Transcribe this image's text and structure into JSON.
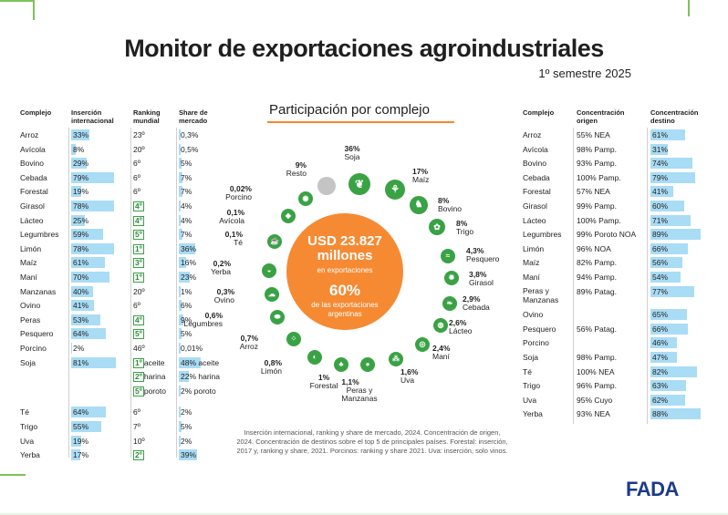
{
  "title": "Monitor de exportaciones agroindustriales",
  "subtitle": "1º semestre 2025",
  "colors": {
    "accent": "#f58a33",
    "green": "#3aa245",
    "bar": "#a9dcf5",
    "brand": "#1d3a8a"
  },
  "left_table": {
    "headers": {
      "complejo": "Complejo",
      "insercion": "Inserción internacional",
      "ranking": "Ranking mundial",
      "share": "Share de mercado"
    },
    "rows": [
      {
        "complejo": "Arroz",
        "insercion": "33%",
        "ins_pct": 33,
        "ranking": "23º",
        "rank_top": false,
        "share": "0,3%",
        "share_pct": 0.3
      },
      {
        "complejo": "Avícola",
        "insercion": "8%",
        "ins_pct": 8,
        "ranking": "20º",
        "rank_top": false,
        "share": "0,5%",
        "share_pct": 0.5
      },
      {
        "complejo": "Bovino",
        "insercion": "29%",
        "ins_pct": 29,
        "ranking": "6º",
        "rank_top": false,
        "share": "5%",
        "share_pct": 5
      },
      {
        "complejo": "Cebada",
        "insercion": "79%",
        "ins_pct": 79,
        "ranking": "6º",
        "rank_top": false,
        "share": "7%",
        "share_pct": 7
      },
      {
        "complejo": "Forestal",
        "insercion": "19%",
        "ins_pct": 19,
        "ranking": "6º",
        "rank_top": false,
        "share": "7%",
        "share_pct": 7
      },
      {
        "complejo": "Girasol",
        "insercion": "78%",
        "ins_pct": 78,
        "ranking": "4º",
        "rank_top": true,
        "share": "4%",
        "share_pct": 4
      },
      {
        "complejo": "Lácteo",
        "insercion": "25%",
        "ins_pct": 25,
        "ranking": "4º",
        "rank_top": true,
        "share": "4%",
        "share_pct": 4
      },
      {
        "complejo": "Legumbres",
        "insercion": "59%",
        "ins_pct": 59,
        "ranking": "5º",
        "rank_top": true,
        "share": "7%",
        "share_pct": 7
      },
      {
        "complejo": "Limón",
        "insercion": "78%",
        "ins_pct": 78,
        "ranking": "1º",
        "rank_top": true,
        "share": "36%",
        "share_pct": 36
      },
      {
        "complejo": "Maíz",
        "insercion": "61%",
        "ins_pct": 61,
        "ranking": "3º",
        "rank_top": true,
        "share": "16%",
        "share_pct": 16
      },
      {
        "complejo": "Maní",
        "insercion": "70%",
        "ins_pct": 70,
        "ranking": "1º",
        "rank_top": true,
        "share": "23%",
        "share_pct": 23
      },
      {
        "complejo": "Manzanas",
        "insercion": "40%",
        "ins_pct": 40,
        "ranking": "20º",
        "rank_top": false,
        "share": "1%",
        "share_pct": 1
      },
      {
        "complejo": "Ovino",
        "insercion": "41%",
        "ins_pct": 41,
        "ranking": "6º",
        "rank_top": false,
        "share": "6%",
        "share_pct": 6
      },
      {
        "complejo": "Peras",
        "insercion": "53%",
        "ins_pct": 53,
        "ranking": "4º",
        "rank_top": true,
        "share": "9%",
        "share_pct": 9
      },
      {
        "complejo": "Pesquero",
        "insercion": "64%",
        "ins_pct": 64,
        "ranking": "5º",
        "rank_top": true,
        "share": "5%",
        "share_pct": 5
      },
      {
        "complejo": "Porcino",
        "insercion": "2%",
        "ins_pct": 2,
        "ranking": "46º",
        "rank_top": false,
        "share": "0,01%",
        "share_pct": 0.01
      },
      {
        "complejo": "Soja",
        "insercion": "81%",
        "ins_pct": 81,
        "ranking": "1º aceite",
        "rank_top": true,
        "share": "48% aceite",
        "share_pct": 48
      },
      {
        "complejo": "",
        "insercion": "",
        "ins_pct": 0,
        "ranking": "2º harina",
        "rank_top": true,
        "share": "22% harina",
        "share_pct": 22
      },
      {
        "complejo": "",
        "insercion": "",
        "ins_pct": 0,
        "ranking": "5º poroto",
        "rank_top": true,
        "share": "2% poroto",
        "share_pct": 2
      },
      {
        "complejo": "Té",
        "insercion": "64%",
        "ins_pct": 64,
        "ranking": "6º",
        "rank_top": false,
        "share": "2%",
        "share_pct": 2
      },
      {
        "complejo": "Trigo",
        "insercion": "55%",
        "ins_pct": 55,
        "ranking": "7º",
        "rank_top": false,
        "share": "5%",
        "share_pct": 5
      },
      {
        "complejo": "Uva",
        "insercion": "19%",
        "ins_pct": 19,
        "ranking": "10º",
        "rank_top": false,
        "share": "2%",
        "share_pct": 2
      },
      {
        "complejo": "Yerba",
        "insercion": "17%",
        "ins_pct": 17,
        "ranking": "2º",
        "rank_top": true,
        "share": "39%",
        "share_pct": 39
      }
    ]
  },
  "right_table": {
    "headers": {
      "complejo": "Complejo",
      "origen": "Concentración origen",
      "destino": "Concentración destino"
    },
    "rows": [
      {
        "complejo": "Arroz",
        "origen": "55% NEA",
        "destino": "61%",
        "dest_pct": 61
      },
      {
        "complejo": "Avícola",
        "origen": "98% Pamp.",
        "destino": "31%",
        "dest_pct": 31
      },
      {
        "complejo": "Bovino",
        "origen": "93% Pamp.",
        "destino": "74%",
        "dest_pct": 74
      },
      {
        "complejo": "Cebada",
        "origen": "100% Pamp.",
        "destino": "79%",
        "dest_pct": 79
      },
      {
        "complejo": "Forestal",
        "origen": "57% NEA",
        "destino": "41%",
        "dest_pct": 41
      },
      {
        "complejo": "Girasol",
        "origen": "99% Pamp.",
        "destino": "60%",
        "dest_pct": 60
      },
      {
        "complejo": "Lácteo",
        "origen": "100% Pamp.",
        "destino": "71%",
        "dest_pct": 71
      },
      {
        "complejo": "Legumbres",
        "origen": "99% Poroto NOA",
        "destino": "89%",
        "dest_pct": 89
      },
      {
        "complejo": "Limón",
        "origen": "96% NOA",
        "destino": "66%",
        "dest_pct": 66
      },
      {
        "complejo": "Maíz",
        "origen": "82% Pamp.",
        "destino": "56%",
        "dest_pct": 56
      },
      {
        "complejo": "Maní",
        "origen": "94% Pamp.",
        "destino": "54%",
        "dest_pct": 54
      },
      {
        "complejo": "Peras y Manzanas",
        "origen": "89% Patag.",
        "destino": "77%",
        "dest_pct": 77
      },
      {
        "complejo": "Ovino",
        "origen": "",
        "destino": "65%",
        "dest_pct": 65
      },
      {
        "complejo": "Pesquero",
        "origen": "56% Patag.",
        "destino": "66%",
        "dest_pct": 66
      },
      {
        "complejo": "Porcino",
        "origen": "",
        "destino": "46%",
        "dest_pct": 46
      },
      {
        "complejo": "Soja",
        "origen": "98% Pamp.",
        "destino": "47%",
        "dest_pct": 47
      },
      {
        "complejo": "Té",
        "origen": "100% NEA",
        "destino": "82%",
        "dest_pct": 82
      },
      {
        "complejo": "Trigo",
        "origen": "96% Pamp.",
        "destino": "63%",
        "dest_pct": 63
      },
      {
        "complejo": "Uva",
        "origen": "95% Cuyo",
        "destino": "62%",
        "dest_pct": 62
      },
      {
        "complejo": "Yerba",
        "origen": "93% NEA",
        "destino": "88%",
        "dest_pct": 88
      }
    ]
  },
  "chart_data": {
    "type": "pie",
    "title": "Participación por complejo",
    "center": {
      "total": "USD 23.827 millones",
      "total_caption": "en exportaciones",
      "share": "60%",
      "share_caption": "de las exportaciones argentinas"
    },
    "slices": [
      {
        "name": "Soja",
        "label": "36%",
        "value": 36,
        "icon": "soy-icon"
      },
      {
        "name": "Maíz",
        "label": "17%",
        "value": 17,
        "icon": "corn-icon"
      },
      {
        "name": "Bovino",
        "label": "8%",
        "value": 8,
        "icon": "cow-icon"
      },
      {
        "name": "Trigo",
        "label": "8%",
        "value": 8,
        "icon": "wheat-icon"
      },
      {
        "name": "Pesquero",
        "label": "4,3%",
        "value": 4.3,
        "icon": "fish-icon"
      },
      {
        "name": "Girasol",
        "label": "3,8%",
        "value": 3.8,
        "icon": "sunflower-icon"
      },
      {
        "name": "Cebada",
        "label": "2,9%",
        "value": 2.9,
        "icon": "barley-icon"
      },
      {
        "name": "Lácteo",
        "label": "2,6%",
        "value": 2.6,
        "icon": "dairy-icon"
      },
      {
        "name": "Maní",
        "label": "2,4%",
        "value": 2.4,
        "icon": "peanut-icon"
      },
      {
        "name": "Uva",
        "label": "1,6%",
        "value": 1.6,
        "icon": "grape-icon"
      },
      {
        "name": "Peras y Manzanas",
        "label": "1,1%",
        "value": 1.1,
        "icon": "apple-icon"
      },
      {
        "name": "Forestal",
        "label": "1%",
        "value": 1,
        "icon": "tree-icon"
      },
      {
        "name": "Limón",
        "label": "0,8%",
        "value": 0.8,
        "icon": "lemon-icon"
      },
      {
        "name": "Arroz",
        "label": "0,7%",
        "value": 0.7,
        "icon": "rice-icon"
      },
      {
        "name": "Legumbres",
        "label": "0,6%",
        "value": 0.6,
        "icon": "legume-icon"
      },
      {
        "name": "Ovino",
        "label": "0,3%",
        "value": 0.3,
        "icon": "sheep-icon"
      },
      {
        "name": "Yerba",
        "label": "0,2%",
        "value": 0.2,
        "icon": "mate-icon"
      },
      {
        "name": "Té",
        "label": "0,1%",
        "value": 0.1,
        "icon": "tea-icon"
      },
      {
        "name": "Avícola",
        "label": "0,1%",
        "value": 0.1,
        "icon": "chicken-icon"
      },
      {
        "name": "Porcino",
        "label": "0,02%",
        "value": 0.02,
        "icon": "pig-icon"
      },
      {
        "name": "Resto",
        "label": "9%",
        "value": 9,
        "icon": "grey-dot"
      }
    ]
  },
  "footnote": "Inserción internacional, ranking y share de mercado, 2024. Concentración de origen, 2024. Concentración de destinos sobre el top 5 de principales países. Forestal: inserción, 2017 y, ranking y share, 2021. Porcinos: ranking y share 2021. Uva: inserción, solo vinos.",
  "logo": "FADA"
}
